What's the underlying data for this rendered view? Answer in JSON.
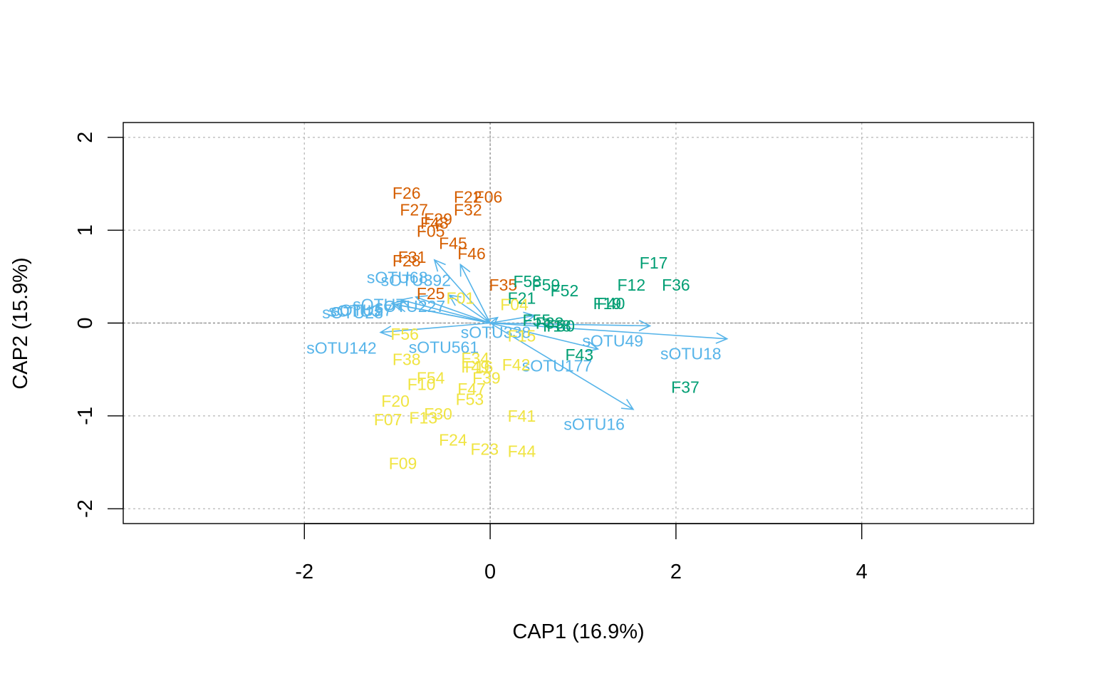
{
  "chart_data": {
    "type": "scatter",
    "xlabel": "CAP1 (16.9%)",
    "ylabel": "CAP2 (15.9%)",
    "xlim": [
      -3.95,
      5.85
    ],
    "ylim": [
      -2.16,
      2.16
    ],
    "xticks": [
      -2,
      0,
      2,
      4
    ],
    "yticks": [
      -2,
      -1,
      0,
      1,
      2
    ],
    "grid": true,
    "colors": {
      "group_orange": "#D55E00",
      "group_green": "#009E73",
      "group_yellow": "#F0E442",
      "species": "#56B4E9",
      "grid": "#BEBEBE",
      "axis": "#000000"
    },
    "series": [
      {
        "color_key": "group_orange",
        "points": [
          {
            "label": "F26",
            "x": -0.9,
            "y": 1.4
          },
          {
            "label": "F22",
            "x": -0.24,
            "y": 1.36
          },
          {
            "label": "F06",
            "x": -0.02,
            "y": 1.36
          },
          {
            "label": "F27",
            "x": -0.82,
            "y": 1.22
          },
          {
            "label": "F32",
            "x": -0.24,
            "y": 1.22
          },
          {
            "label": "F29",
            "x": -0.56,
            "y": 1.12
          },
          {
            "label": "F48",
            "x": -0.6,
            "y": 1.08
          },
          {
            "label": "F05",
            "x": -0.64,
            "y": 0.99
          },
          {
            "label": "F45",
            "x": -0.4,
            "y": 0.86
          },
          {
            "label": "F46",
            "x": -0.2,
            "y": 0.75
          },
          {
            "label": "F31",
            "x": -0.84,
            "y": 0.71
          },
          {
            "label": "F28",
            "x": -0.9,
            "y": 0.67
          },
          {
            "label": "F35",
            "x": 0.14,
            "y": 0.41
          },
          {
            "label": "F25",
            "x": -0.64,
            "y": 0.32
          }
        ]
      },
      {
        "color_key": "group_green",
        "points": [
          {
            "label": "F17",
            "x": 1.76,
            "y": 0.65
          },
          {
            "label": "F12",
            "x": 1.52,
            "y": 0.41
          },
          {
            "label": "F36",
            "x": 2.0,
            "y": 0.41
          },
          {
            "label": "F58",
            "x": 0.4,
            "y": 0.45
          },
          {
            "label": "F59",
            "x": 0.6,
            "y": 0.41
          },
          {
            "label": "F52",
            "x": 0.8,
            "y": 0.35
          },
          {
            "label": "F21",
            "x": 0.34,
            "y": 0.27
          },
          {
            "label": "F19",
            "x": 1.26,
            "y": 0.21
          },
          {
            "label": "F40",
            "x": 1.3,
            "y": 0.21
          },
          {
            "label": "F55",
            "x": 0.5,
            "y": 0.03
          },
          {
            "label": "F33",
            "x": 0.64,
            "y": 0.0
          },
          {
            "label": "F18",
            "x": 0.72,
            "y": -0.03
          },
          {
            "label": "F50",
            "x": 0.76,
            "y": -0.03
          },
          {
            "label": "F43",
            "x": 0.96,
            "y": -0.34
          },
          {
            "label": "F37",
            "x": 2.1,
            "y": -0.69
          }
        ]
      },
      {
        "color_key": "group_yellow",
        "points": [
          {
            "label": "F04",
            "x": 0.26,
            "y": 0.2
          },
          {
            "label": "F01",
            "x": -0.32,
            "y": 0.27
          },
          {
            "label": "F56",
            "x": -0.92,
            "y": -0.12
          },
          {
            "label": "F15",
            "x": 0.34,
            "y": -0.14
          },
          {
            "label": "F34",
            "x": -0.16,
            "y": -0.38
          },
          {
            "label": "F38",
            "x": -0.9,
            "y": -0.39
          },
          {
            "label": "F42",
            "x": 0.28,
            "y": -0.45
          },
          {
            "label": "F49",
            "x": -0.16,
            "y": -0.47
          },
          {
            "label": "F16",
            "x": -0.12,
            "y": -0.47
          },
          {
            "label": "F39",
            "x": -0.04,
            "y": -0.59
          },
          {
            "label": "F54",
            "x": -0.64,
            "y": -0.59
          },
          {
            "label": "F10",
            "x": -0.74,
            "y": -0.66
          },
          {
            "label": "F47",
            "x": -0.2,
            "y": -0.71
          },
          {
            "label": "F53",
            "x": -0.22,
            "y": -0.82
          },
          {
            "label": "F20",
            "x": -1.02,
            "y": -0.84
          },
          {
            "label": "F30",
            "x": -0.56,
            "y": -0.98
          },
          {
            "label": "F41",
            "x": 0.34,
            "y": -1.0
          },
          {
            "label": "F13",
            "x": -0.72,
            "y": -1.02
          },
          {
            "label": "F07",
            "x": -1.1,
            "y": -1.04
          },
          {
            "label": "F24",
            "x": -0.4,
            "y": -1.26
          },
          {
            "label": "F23",
            "x": -0.06,
            "y": -1.36
          },
          {
            "label": "F44",
            "x": 0.34,
            "y": -1.38
          },
          {
            "label": "F09",
            "x": -0.94,
            "y": -1.51
          }
        ]
      }
    ],
    "biplot_arrows": [
      {
        "label": "sOTU18",
        "x": 2.55,
        "y": -0.17,
        "lx": 2.16,
        "ly": -0.33
      },
      {
        "label": "sOTU49",
        "x": 1.72,
        "y": -0.03,
        "lx": 1.32,
        "ly": -0.19
      },
      {
        "label": "sOTU16",
        "x": 1.54,
        "y": -0.93,
        "lx": 1.12,
        "ly": -1.09
      },
      {
        "label": "sOTU177",
        "x": 1.16,
        "y": -0.28,
        "lx": 0.72,
        "ly": -0.46
      },
      {
        "label": "sOTU338",
        "x": 0.48,
        "y": 0.08,
        "lx": 0.06,
        "ly": -0.1
      },
      {
        "label": "sOTU561",
        "x": 0.08,
        "y": 0.06,
        "lx": -0.5,
        "ly": -0.26
      },
      {
        "label": "sOTU142",
        "x": -1.18,
        "y": -0.1,
        "lx": -1.6,
        "ly": -0.27
      },
      {
        "label": "sOTU68",
        "x": -0.6,
        "y": 0.68,
        "lx": -1.0,
        "ly": 0.49
      },
      {
        "label": "sOTU392",
        "x": -0.32,
        "y": 0.63,
        "lx": -0.8,
        "ly": 0.46
      },
      {
        "label": "sOTU227",
        "x": -0.44,
        "y": 0.3,
        "lx": -0.86,
        "ly": 0.18
      },
      {
        "label": "sOTU7",
        "x": -0.8,
        "y": 0.28,
        "lx": -1.2,
        "ly": 0.2
      },
      {
        "label": "sOTU57",
        "x": -0.96,
        "y": 0.25,
        "lx": -1.38,
        "ly": 0.14
      },
      {
        "label": "sOTU3",
        "x": -1.06,
        "y": 0.21,
        "lx": -1.46,
        "ly": 0.13
      },
      {
        "label": "sOTU28",
        "x": -1.02,
        "y": 0.2,
        "lx": -1.48,
        "ly": 0.11
      }
    ]
  }
}
